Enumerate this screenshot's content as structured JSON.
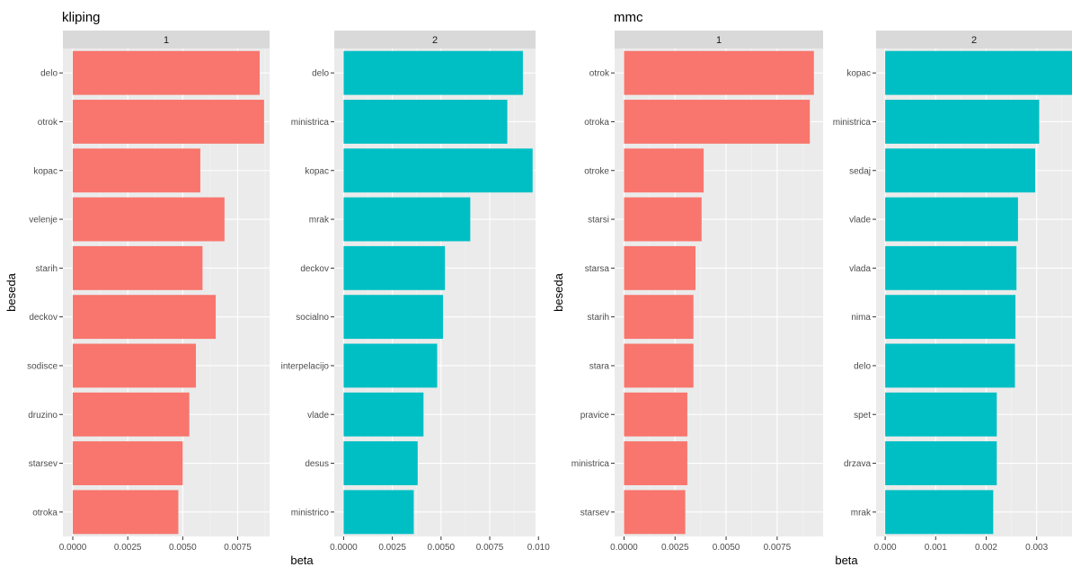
{
  "charts": [
    {
      "title": "kliping",
      "ylabel": "beseda",
      "xlabel": "beta",
      "panels": [
        {
          "strip": "1",
          "color": "#F8766D",
          "xlim": [
            -0.00045,
            0.00895
          ],
          "xticks": [
            0,
            0.0025,
            0.005,
            0.0075
          ],
          "xtick_labels": [
            "0.0000",
            "0.0025",
            "0.0050",
            "0.0075"
          ],
          "categories": [
            "delo",
            "otrok",
            "kopac",
            "velenje",
            "starih",
            "deckov",
            "sodisce",
            "druzino",
            "starsev",
            "otroka"
          ],
          "values": [
            0.0085,
            0.0087,
            0.0058,
            0.0069,
            0.0059,
            0.0065,
            0.0056,
            0.0053,
            0.005,
            0.0048
          ]
        },
        {
          "strip": "2",
          "color": "#00BFC4",
          "xlim": [
            -0.00048,
            0.00985
          ],
          "xticks": [
            0,
            0.0025,
            0.005,
            0.0075,
            0.01
          ],
          "xtick_labels": [
            "0.0000",
            "0.0025",
            "0.0050",
            "0.0075",
            "0.010"
          ],
          "categories": [
            "delo",
            "ministrica",
            "kopac",
            "mrak",
            "deckov",
            "socialno",
            "interpelacijo",
            "vlade",
            "desus",
            "ministrico"
          ],
          "values": [
            0.0092,
            0.0084,
            0.0097,
            0.0065,
            0.0052,
            0.0051,
            0.0048,
            0.0041,
            0.0038,
            0.0036
          ]
        }
      ]
    },
    {
      "title": "mmc",
      "ylabel": "beseda",
      "xlabel": "beta",
      "panels": [
        {
          "strip": "1",
          "color": "#F8766D",
          "xlim": [
            -0.00046,
            0.00975
          ],
          "xticks": [
            0,
            0.0025,
            0.005,
            0.0075
          ],
          "xtick_labels": [
            "0.0000",
            "0.0025",
            "0.0050",
            "0.0075"
          ],
          "categories": [
            "otrok",
            "otroka",
            "otroke",
            "starsi",
            "starsa",
            "starih",
            "stara",
            "pravice",
            "ministrica",
            "starsev"
          ],
          "values": [
            0.0093,
            0.0091,
            0.0039,
            0.0038,
            0.0035,
            0.0034,
            0.0034,
            0.0031,
            0.0031,
            0.003
          ]
        },
        {
          "strip": "2",
          "color": "#00BFC4",
          "xlim": [
            -0.00018,
            0.0037
          ],
          "xticks": [
            0,
            0.001,
            0.002,
            0.003
          ],
          "xtick_labels": [
            "0.000",
            "0.001",
            "0.002",
            "0.003"
          ],
          "categories": [
            "kopac",
            "ministrica",
            "sedaj",
            "vlade",
            "vlada",
            "nima",
            "delo",
            "spet",
            "drzava",
            "mrak"
          ],
          "values": [
            0.0037,
            0.00305,
            0.00297,
            0.00263,
            0.0026,
            0.00258,
            0.00257,
            0.00221,
            0.00221,
            0.00214
          ]
        }
      ]
    }
  ],
  "chart_data": [
    {
      "type": "bar",
      "title": "kliping",
      "ylabel": "beseda",
      "xlabel": "beta",
      "orientation": "horizontal",
      "facets": [
        {
          "facet": "1",
          "categories": [
            "delo",
            "otrok",
            "kopac",
            "velenje",
            "starih",
            "deckov",
            "sodisce",
            "druzino",
            "starsev",
            "otroka"
          ],
          "values": [
            0.0085,
            0.0087,
            0.0058,
            0.0069,
            0.0059,
            0.0065,
            0.0056,
            0.0053,
            0.005,
            0.0048
          ]
        },
        {
          "facet": "2",
          "categories": [
            "delo",
            "ministrica",
            "kopac",
            "mrak",
            "deckov",
            "socialno",
            "interpelacijo",
            "vlade",
            "desus",
            "ministrico"
          ],
          "values": [
            0.0092,
            0.0084,
            0.0097,
            0.0065,
            0.0052,
            0.0051,
            0.0048,
            0.0041,
            0.0038,
            0.0036
          ]
        }
      ]
    },
    {
      "type": "bar",
      "title": "mmc",
      "ylabel": "beseda",
      "xlabel": "beta",
      "orientation": "horizontal",
      "facets": [
        {
          "facet": "1",
          "categories": [
            "otrok",
            "otroka",
            "otroke",
            "starsi",
            "starsa",
            "starih",
            "stara",
            "pravice",
            "ministrica",
            "starsev"
          ],
          "values": [
            0.0093,
            0.0091,
            0.0039,
            0.0038,
            0.0035,
            0.0034,
            0.0034,
            0.0031,
            0.0031,
            0.003
          ]
        },
        {
          "facet": "2",
          "categories": [
            "kopac",
            "ministrica",
            "sedaj",
            "vlade",
            "vlada",
            "nima",
            "delo",
            "spet",
            "drzava",
            "mrak"
          ],
          "values": [
            0.0037,
            0.00305,
            0.00297,
            0.00263,
            0.0026,
            0.00258,
            0.00257,
            0.00221,
            0.00221,
            0.00214
          ]
        }
      ]
    }
  ]
}
